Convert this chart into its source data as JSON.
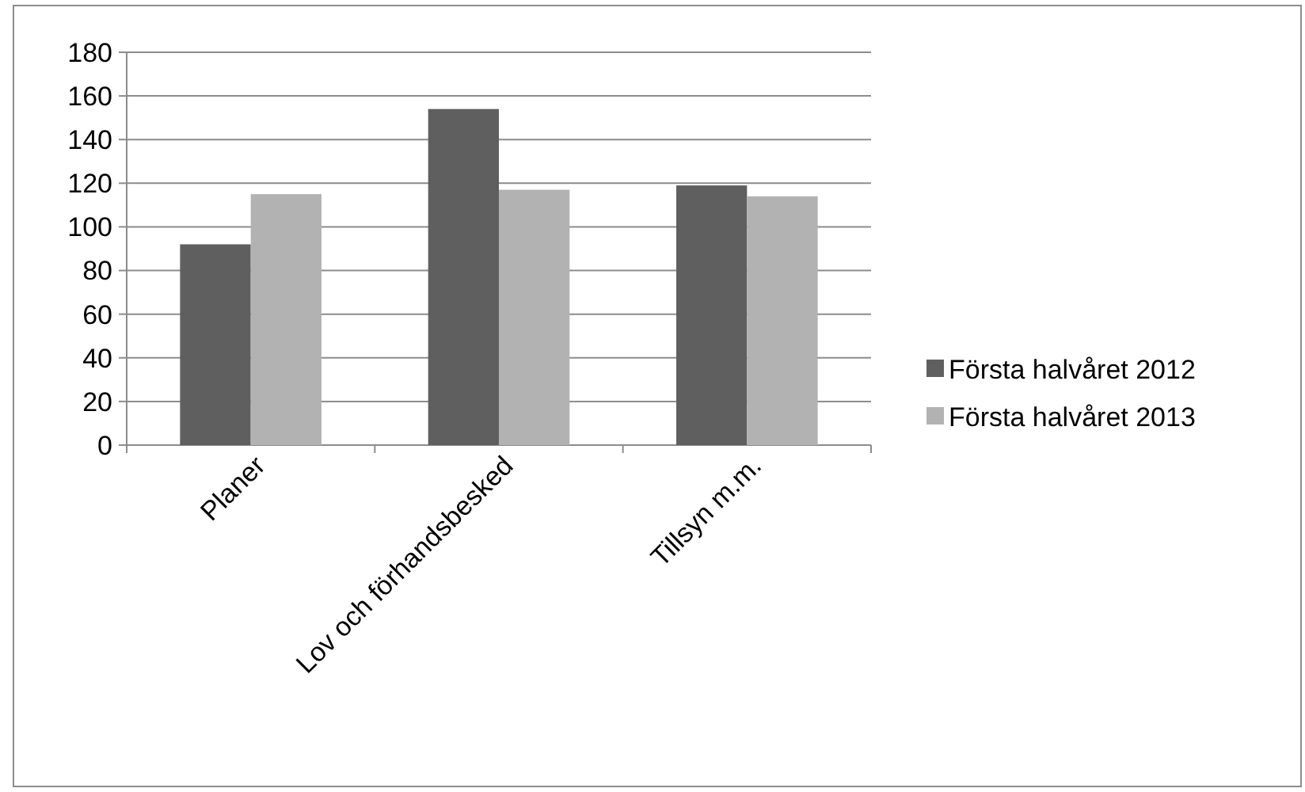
{
  "chart_data": {
    "type": "bar",
    "categories": [
      "Planer",
      "Lov och förhandsbesked",
      "Tillsyn m.m."
    ],
    "series": [
      {
        "name": "Första halvåret 2012",
        "color": "#5f5f5f",
        "values": [
          92,
          154,
          119
        ]
      },
      {
        "name": "Första halvåret 2013",
        "color": "#b2b2b2",
        "values": [
          115,
          117,
          114
        ]
      }
    ],
    "ylim": [
      0,
      180
    ],
    "yticks": [
      0,
      20,
      40,
      60,
      80,
      100,
      120,
      140,
      160,
      180
    ],
    "grid": "y",
    "legend": "right"
  }
}
